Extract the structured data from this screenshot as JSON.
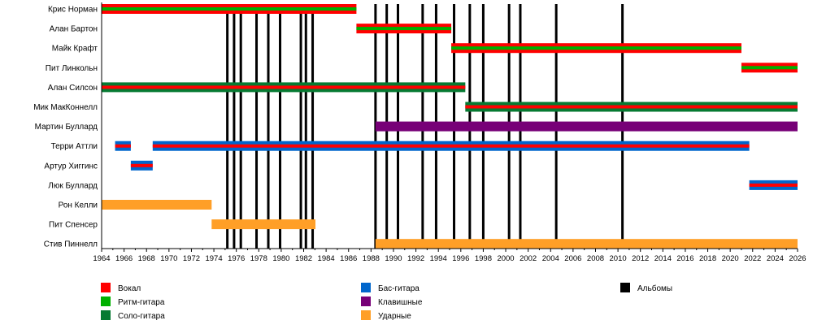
{
  "chart_data": {
    "type": "timeline",
    "title": "",
    "xlim": [
      1964,
      2026
    ],
    "x_ticks": [
      1964,
      1966,
      1968,
      1970,
      1972,
      1974,
      1976,
      1978,
      1980,
      1982,
      1984,
      1986,
      1988,
      1990,
      1992,
      1994,
      1996,
      1998,
      2000,
      2002,
      2004,
      2006,
      2008,
      2010,
      2012,
      2014,
      2016,
      2018,
      2020,
      2022,
      2024,
      2026
    ],
    "roles": {
      "vocal": {
        "label": "Вокал",
        "color": "#ff0000"
      },
      "rhythm": {
        "label": "Ритм-гитара",
        "color": "#00b000"
      },
      "lead": {
        "label": "Соло-гитара",
        "color": "#067a32"
      },
      "bass": {
        "label": "Бас-гитара",
        "color": "#0066cc"
      },
      "keys": {
        "label": "Клавишные",
        "color": "#770077"
      },
      "drums": {
        "label": "Ударные",
        "color": "#ff9f27"
      },
      "albums": {
        "label": "Альбомы",
        "color": "#000000"
      }
    },
    "legend_columns": [
      [
        "vocal",
        "rhythm",
        "lead"
      ],
      [
        "bass",
        "keys",
        "drums"
      ],
      [
        "albums"
      ]
    ],
    "members": [
      {
        "name": "Крис Норман",
        "periods": [
          {
            "start": 1964,
            "end": 1986.7,
            "main": "vocal",
            "inner": "rhythm"
          }
        ]
      },
      {
        "name": "Алан Бартон",
        "periods": [
          {
            "start": 1986.7,
            "end": 1995.15,
            "main": "vocal",
            "inner": "rhythm"
          }
        ]
      },
      {
        "name": "Майк Крафт",
        "periods": [
          {
            "start": 1995.15,
            "end": 2021.0,
            "main": "vocal",
            "inner": "rhythm"
          }
        ]
      },
      {
        "name": "Пит Линкольн",
        "periods": [
          {
            "start": 2021.0,
            "end": 2026,
            "main": "vocal",
            "inner": "rhythm"
          }
        ]
      },
      {
        "name": "Алан Силсон",
        "periods": [
          {
            "start": 1964,
            "end": 1996.4,
            "main": "lead",
            "inner": "vocal"
          }
        ]
      },
      {
        "name": "Мик МакКоннелл",
        "periods": [
          {
            "start": 1996.4,
            "end": 2026,
            "main": "lead",
            "inner": "vocal"
          }
        ]
      },
      {
        "name": "Мартин Буллард",
        "periods": [
          {
            "start": 1988.4,
            "end": 2026,
            "main": "keys"
          }
        ]
      },
      {
        "name": "Терри Аттли",
        "periods": [
          {
            "start": 1965.2,
            "end": 1966.6,
            "main": "bass",
            "inner": "vocal"
          },
          {
            "start": 1968.55,
            "end": 2021.7,
            "main": "bass",
            "inner": "vocal"
          }
        ]
      },
      {
        "name": "Артур Хиггинс",
        "periods": [
          {
            "start": 1966.6,
            "end": 1968.55,
            "main": "bass",
            "inner": "vocal"
          }
        ]
      },
      {
        "name": "Люк Буллард",
        "periods": [
          {
            "start": 2021.7,
            "end": 2026,
            "main": "bass",
            "inner": "vocal"
          }
        ]
      },
      {
        "name": "Рон Келли",
        "periods": [
          {
            "start": 1964,
            "end": 1973.8,
            "main": "drums"
          }
        ]
      },
      {
        "name": "Пит Спенсер",
        "periods": [
          {
            "start": 1973.8,
            "end": 1983.05,
            "main": "drums"
          }
        ]
      },
      {
        "name": "Стив Пиннелл",
        "periods": [
          {
            "start": 1988.4,
            "end": 2026,
            "main": "drums"
          }
        ]
      }
    ],
    "albums": [
      1975.2,
      1975.8,
      1976.4,
      1977.8,
      1978.85,
      1979.9,
      1981.75,
      1982.2,
      1982.8,
      1988.4,
      1989.4,
      1990.4,
      1992.6,
      1993.8,
      1995.4,
      1996.8,
      1998.0,
      2000.3,
      2001.3,
      2004.5,
      2010.4
    ]
  }
}
